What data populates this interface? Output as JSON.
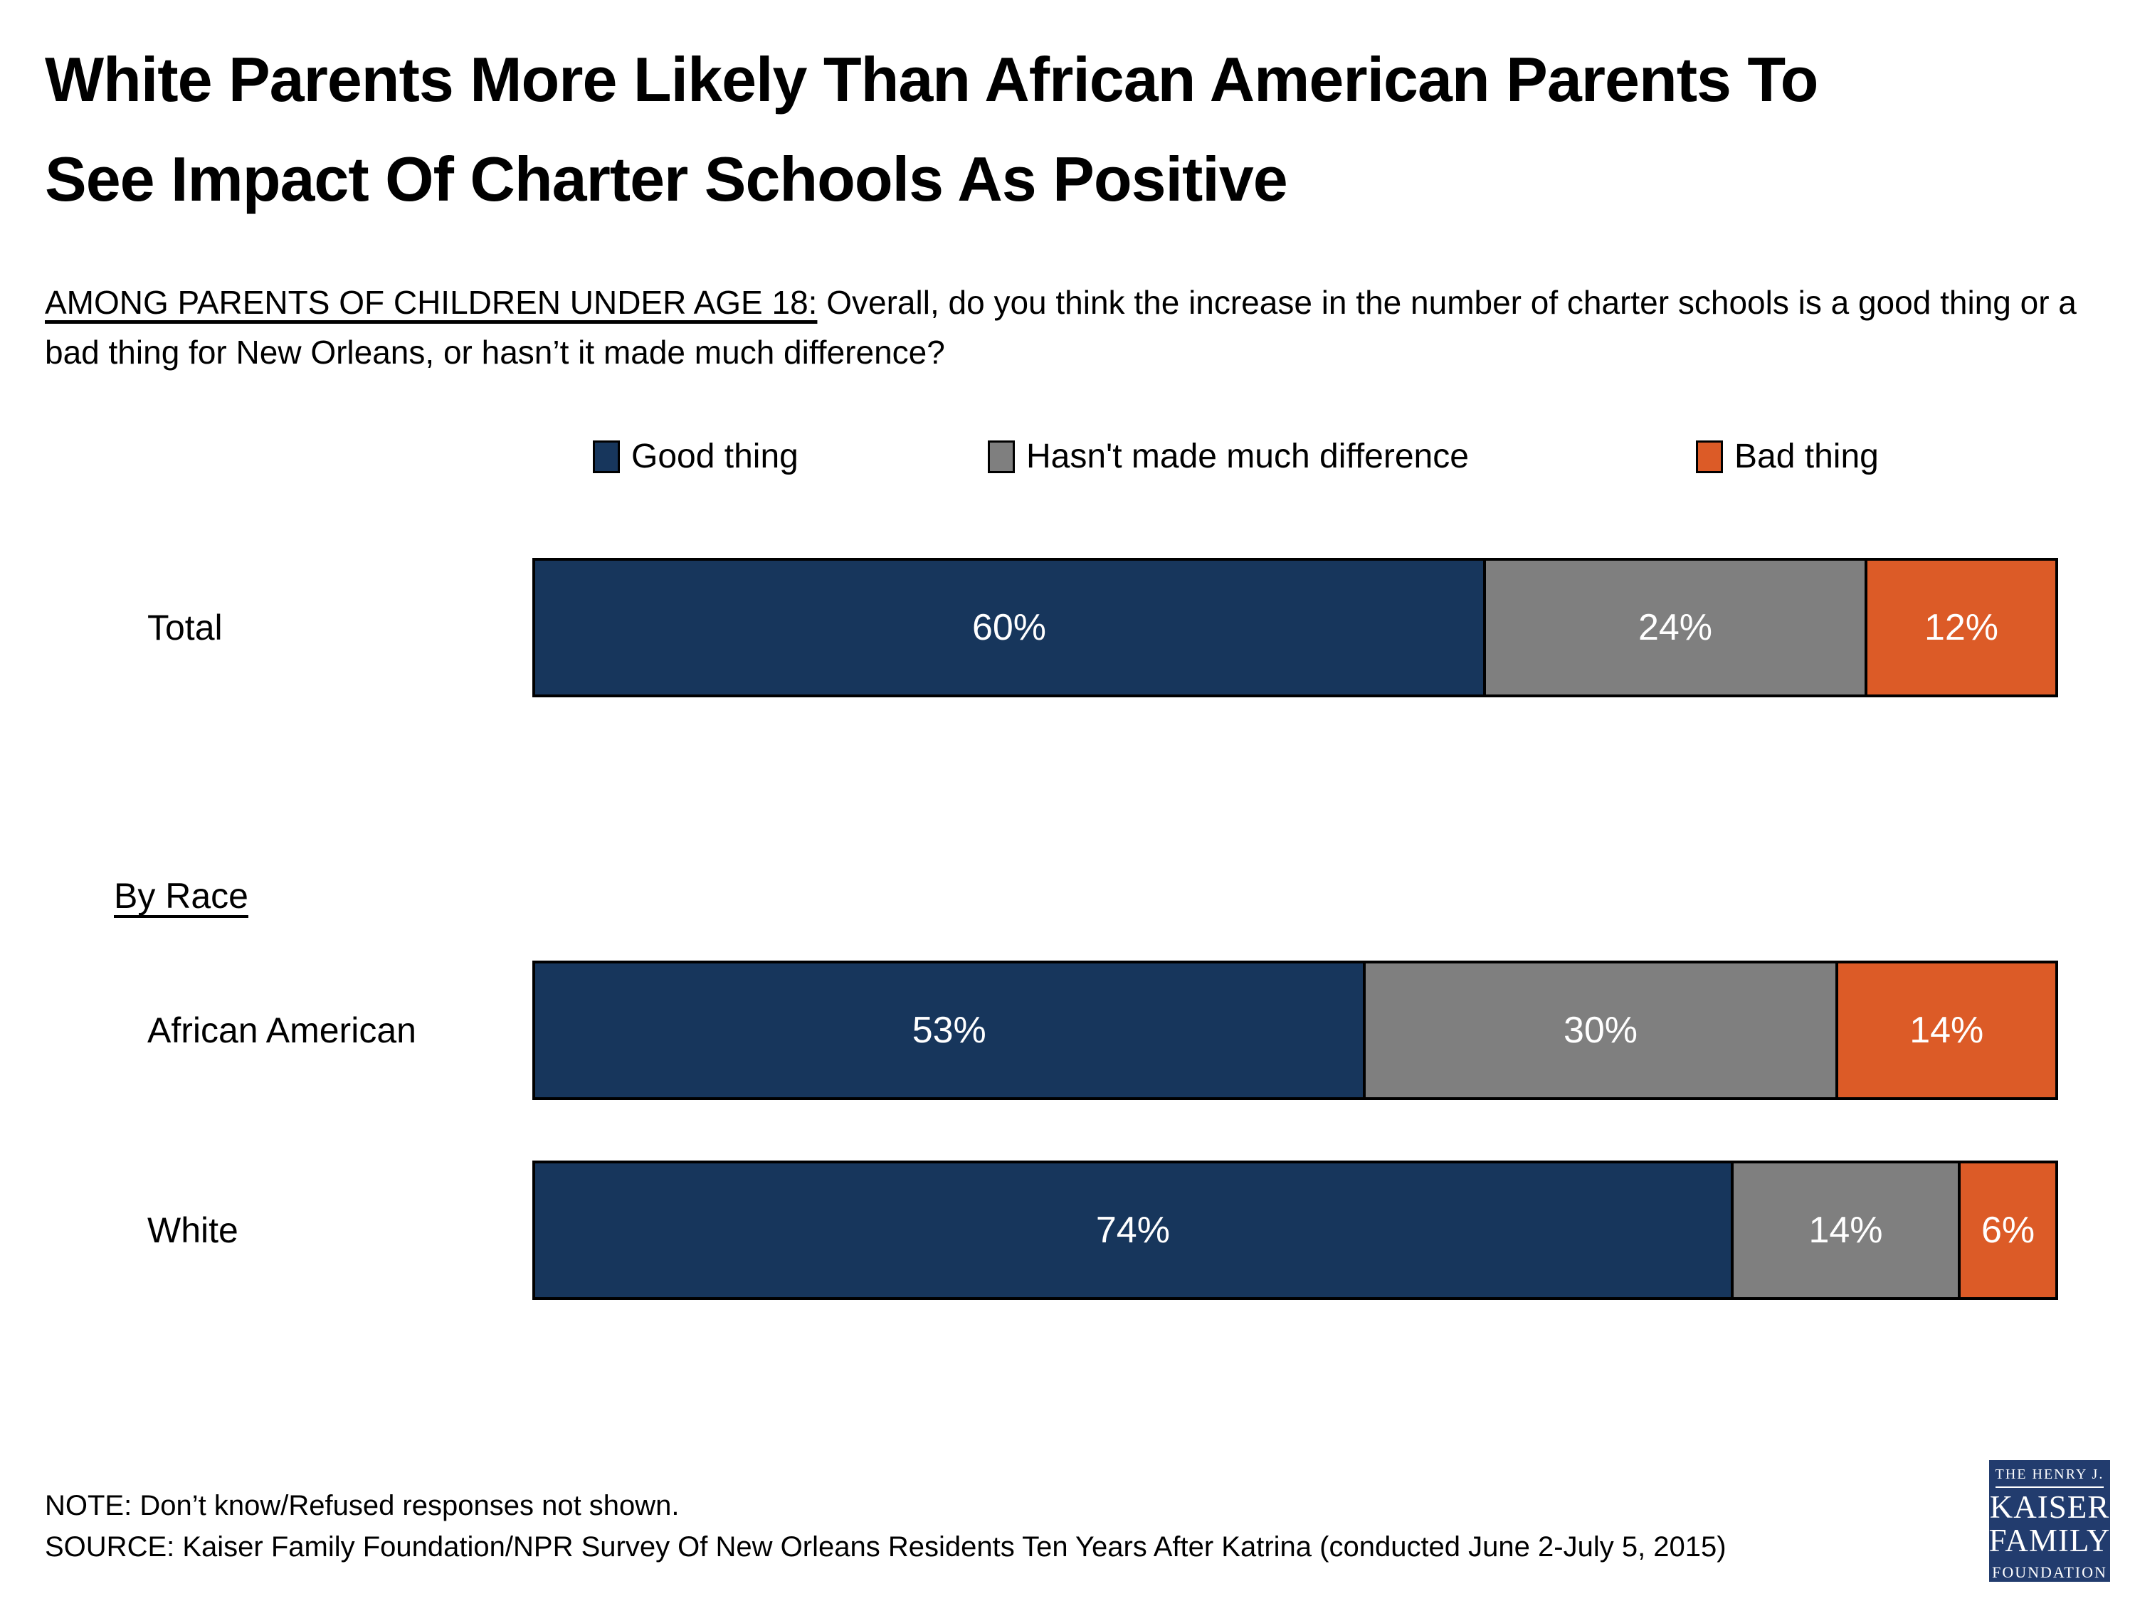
{
  "header": {
    "title_lines": [
      "White Parents More Likely Than African American Parents To",
      "See Impact Of Charter Schools As Positive"
    ],
    "subtitle_underlined": "AMONG PARENTS OF CHILDREN UNDER AGE 18:",
    "subtitle_rest": " Overall, do you think the increase in the number of charter schools is a good thing or a bad thing for New Orleans, or hasn’t it made much difference?"
  },
  "chart_data": {
    "type": "bar",
    "subtype": "horizontal-stacked-normalized",
    "legend_position": "top",
    "unit": "%",
    "legend": [
      {
        "label": "Good thing",
        "color": "#17365C"
      },
      {
        "label": "Hasn't made much difference",
        "color": "#7F7F7F"
      },
      {
        "label": "Bad thing",
        "color": "#DC5B27"
      }
    ],
    "section_heading": "By Race",
    "rows": [
      {
        "label": "Total",
        "values": [
          60,
          24,
          12
        ]
      },
      {
        "label": "African American",
        "values": [
          53,
          30,
          14
        ]
      },
      {
        "label": "White",
        "values": [
          74,
          14,
          6
        ]
      }
    ],
    "segment_border_color": "#000000",
    "value_label_color": "#FFFFFF"
  },
  "footer": {
    "note": "NOTE: Don’t know/Refused responses not shown.",
    "source": "SOURCE: Kaiser Family Foundation/NPR Survey Of New Orleans Residents Ten Years After Katrina (conducted June 2-July 5, 2015)"
  },
  "logo": {
    "line1": "THE HENRY J.",
    "line2": "KAISER",
    "line3": "FAMILY",
    "line4": "FOUNDATION",
    "background": "#223C6E"
  }
}
